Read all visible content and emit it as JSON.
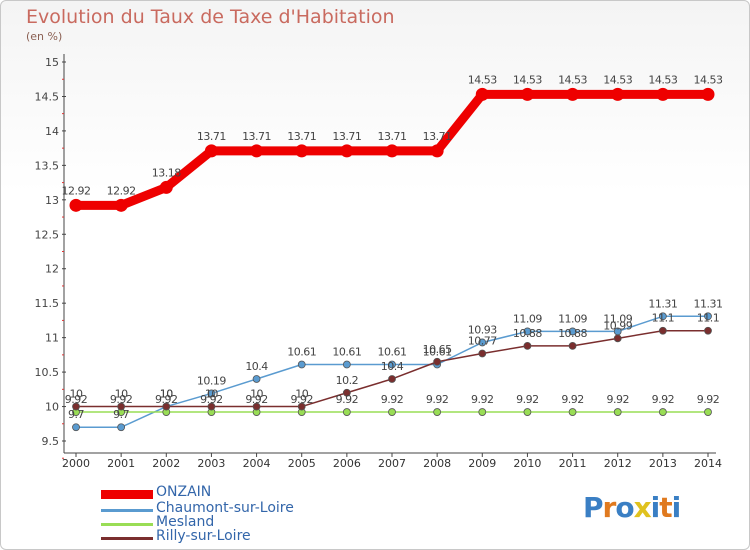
{
  "title": "Evolution du Taux de Taxe d'Habitation",
  "unit": "(en %)",
  "logo_text": "Proxiti",
  "chart_data": {
    "type": "line",
    "categories": [
      "2000",
      "2001",
      "2002",
      "2003",
      "2004",
      "2005",
      "2006",
      "2007",
      "2008",
      "2009",
      "2010",
      "2011",
      "2012",
      "2013",
      "2014"
    ],
    "ylim": [
      9.5,
      15
    ],
    "yticks": [
      "9.5",
      "10",
      "10.5",
      "11",
      "11.5",
      "12",
      "12.5",
      "13",
      "13.5",
      "14",
      "14.5",
      "15"
    ],
    "grid": false,
    "legend_position": "bottom-left",
    "series": [
      {
        "name": "ONZAIN",
        "color": "#ee0000",
        "values": [
          12.92,
          12.92,
          13.18,
          13.71,
          13.71,
          13.71,
          13.71,
          13.71,
          13.71,
          14.53,
          14.53,
          14.53,
          14.53,
          14.53,
          14.53
        ],
        "labels": [
          "12.92",
          "12.92",
          "13.18",
          "13.71",
          "13.71",
          "13.71",
          "13.71",
          "13.71",
          "13.71",
          "14.53",
          "14.53",
          "14.53",
          "14.53",
          "14.53",
          "14.53"
        ]
      },
      {
        "name": "Chaumont-sur-Loire",
        "color": "#5a9bd0",
        "values": [
          9.7,
          9.7,
          10,
          10.19,
          10.4,
          10.61,
          10.61,
          10.61,
          10.61,
          10.93,
          11.09,
          11.09,
          11.09,
          11.31,
          11.31
        ],
        "labels": [
          "9.7",
          "9.7",
          "10",
          "10.19",
          "10.4",
          "10.61",
          "10.61",
          "10.61",
          "10.61",
          "10.93",
          "11.09",
          "11.09",
          "11.09",
          "11.31",
          "11.31"
        ]
      },
      {
        "name": "Mesland",
        "color": "#99dd55",
        "values": [
          9.92,
          9.92,
          9.92,
          9.92,
          9.92,
          9.92,
          9.92,
          9.92,
          9.92,
          9.92,
          9.92,
          9.92,
          9.92,
          9.92,
          9.92
        ],
        "labels": [
          "9.92",
          "9.92",
          "9.92",
          "9.92",
          "9.92",
          "9.92",
          "9.92",
          "9.92",
          "9.92",
          "9.92",
          "9.92",
          "9.92",
          "9.92",
          "9.92",
          "9.92"
        ]
      },
      {
        "name": "Rilly-sur-Loire",
        "color": "#7a2e2e",
        "values": [
          10,
          10,
          10,
          10,
          10,
          10,
          10.2,
          10.4,
          10.65,
          10.77,
          10.88,
          10.88,
          10.99,
          11.1,
          11.1
        ],
        "labels": [
          "10",
          "10",
          "10",
          "10",
          "10",
          "10",
          "10.2",
          "10.4",
          "10.65",
          "10.77",
          "10.88",
          "10.88",
          "10.99",
          "11.1",
          "11.1"
        ]
      }
    ]
  },
  "legend": {
    "items": [
      {
        "label": "ONZAIN",
        "color": "#ee0000"
      },
      {
        "label": "Chaumont-sur-Loire",
        "color": "#5a9bd0"
      },
      {
        "label": "Mesland",
        "color": "#99dd55"
      },
      {
        "label": "Rilly-sur-Loire",
        "color": "#7a2e2e"
      }
    ]
  }
}
